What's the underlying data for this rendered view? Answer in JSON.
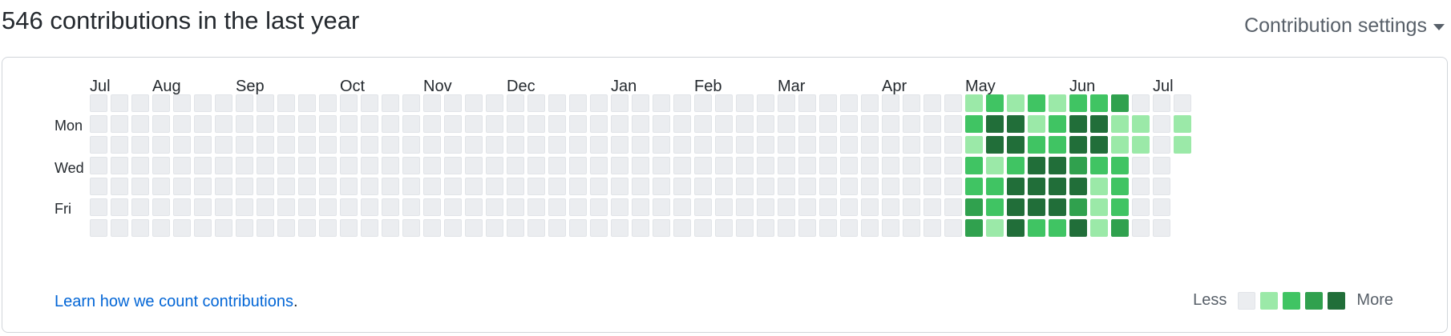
{
  "header": {
    "title": "546 contributions in the last year",
    "settings_label": "Contribution settings"
  },
  "months": [
    "Jul",
    "Aug",
    "Sep",
    "Oct",
    "Nov",
    "Dec",
    "Jan",
    "Feb",
    "Mar",
    "Apr",
    "May",
    "Jun",
    "Jul"
  ],
  "weekdays": {
    "mon": "Mon",
    "wed": "Wed",
    "fri": "Fri"
  },
  "colors": {
    "levels": [
      "#ebedf0",
      "#9be9a8",
      "#40c463",
      "#30a14e",
      "#216e39"
    ],
    "level0_border": "#e1e4e8",
    "link": "#0366d6"
  },
  "contributions": {
    "active_start_week": 42,
    "active_levels": [
      [
        1,
        2,
        1,
        2,
        2,
        3,
        3
      ],
      [
        2,
        4,
        4,
        1,
        2,
        2,
        1
      ],
      [
        1,
        4,
        4,
        2,
        4,
        4,
        4
      ],
      [
        2,
        1,
        2,
        4,
        4,
        4,
        2
      ],
      [
        1,
        2,
        2,
        4,
        4,
        4,
        2
      ],
      [
        2,
        4,
        4,
        3,
        4,
        3,
        4
      ],
      [
        2,
        4,
        4,
        2,
        1,
        1,
        1
      ],
      [
        3,
        1,
        1,
        2,
        2,
        2,
        3
      ],
      [
        0,
        1,
        1,
        0,
        0,
        0,
        0
      ],
      [
        0,
        0,
        0,
        0,
        0,
        0,
        0
      ],
      [
        0,
        1,
        1
      ]
    ]
  },
  "footer": {
    "learn_link": "Learn how we count contributions",
    "learn_suffix": ".",
    "less": "Less",
    "more": "More"
  }
}
